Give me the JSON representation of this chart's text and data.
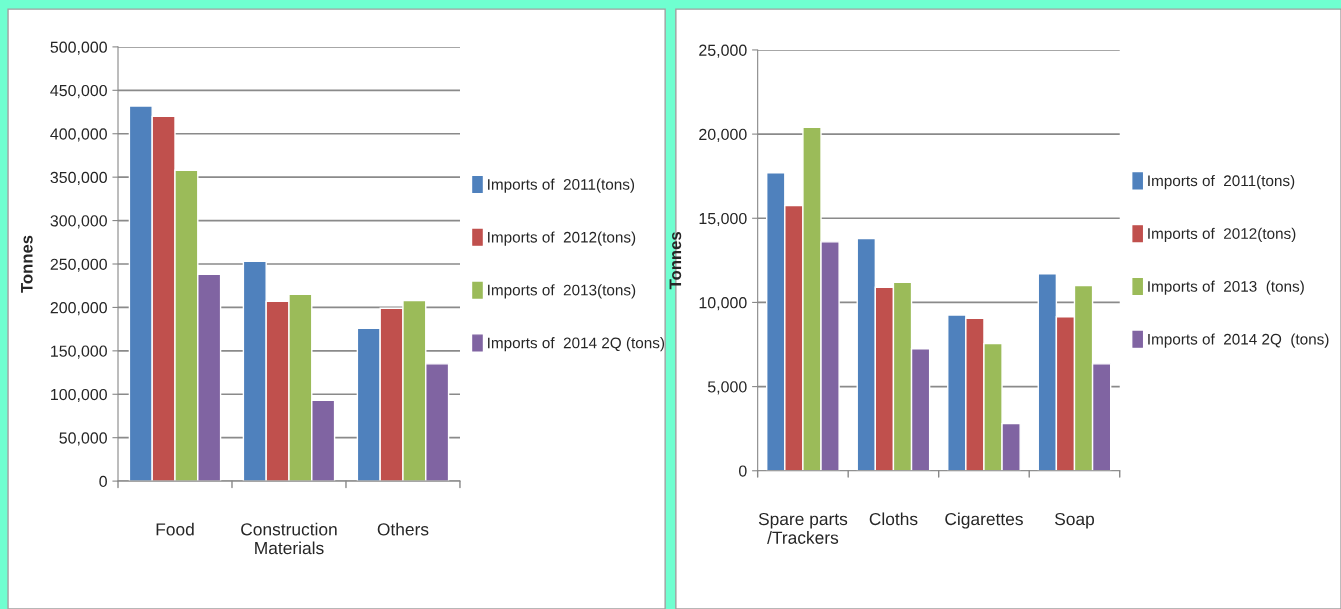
{
  "chart_data": [
    {
      "type": "bar",
      "ylabel": "Tonnes",
      "categories": [
        "Food",
        "Construction\nMaterials",
        "Others"
      ],
      "series": [
        {
          "name": "Imports of  2011(tons)",
          "color": "#4f81bd",
          "values": [
            432000,
            253000,
            176000
          ]
        },
        {
          "name": "Imports of  2012(tons)",
          "color": "#c0504d",
          "values": [
            420000,
            207000,
            199000
          ]
        },
        {
          "name": "Imports of  2013(tons)",
          "color": "#9bbb59",
          "values": [
            358000,
            215000,
            208000
          ]
        },
        {
          "name": "Imports of  2014 2Q (tons)",
          "color": "#8064a2",
          "values": [
            238000,
            93000,
            135000
          ]
        }
      ],
      "ylim": [
        0,
        500000
      ],
      "yticks": [
        {
          "value": 0,
          "label": "0"
        },
        {
          "value": 50000,
          "label": "50,000"
        },
        {
          "value": 100000,
          "label": "100,000"
        },
        {
          "value": 150000,
          "label": "150,000"
        },
        {
          "value": 200000,
          "label": "200,000"
        },
        {
          "value": 250000,
          "label": "250,000"
        },
        {
          "value": 300000,
          "label": "300,000"
        },
        {
          "value": 350000,
          "label": "350,000"
        },
        {
          "value": 400000,
          "label": "400,000"
        },
        {
          "value": 450000,
          "label": "450,000"
        },
        {
          "value": 500000,
          "label": "500,000"
        }
      ],
      "grid": "y",
      "legend": "right"
    },
    {
      "type": "bar",
      "ylabel": "Tonnes",
      "categories": [
        "Spare parts\n/Trackers",
        "Cloths",
        "Cigarettes",
        "Soap"
      ],
      "series": [
        {
          "name": "Imports of  2011(tons)",
          "color": "#4f81bd",
          "values": [
            17700,
            13800,
            9250,
            11700
          ]
        },
        {
          "name": "Imports of  2012(tons)",
          "color": "#c0504d",
          "values": [
            15750,
            10900,
            9050,
            9150
          ]
        },
        {
          "name": "Imports of  2013  (tons)",
          "color": "#9bbb59",
          "values": [
            20400,
            11200,
            7550,
            11000
          ]
        },
        {
          "name": "Imports of  2014 2Q  (tons)",
          "color": "#8064a2",
          "values": [
            13600,
            7250,
            2800,
            6350
          ]
        }
      ],
      "ylim": [
        0,
        25000
      ],
      "yticks": [
        {
          "value": 0,
          "label": "0"
        },
        {
          "value": 5000,
          "label": "5,000"
        },
        {
          "value": 10000,
          "label": "10,000"
        },
        {
          "value": 15000,
          "label": "15,000"
        },
        {
          "value": 20000,
          "label": "20,000"
        },
        {
          "value": 25000,
          "label": "25,000"
        }
      ],
      "grid": "y",
      "legend": "right"
    }
  ]
}
